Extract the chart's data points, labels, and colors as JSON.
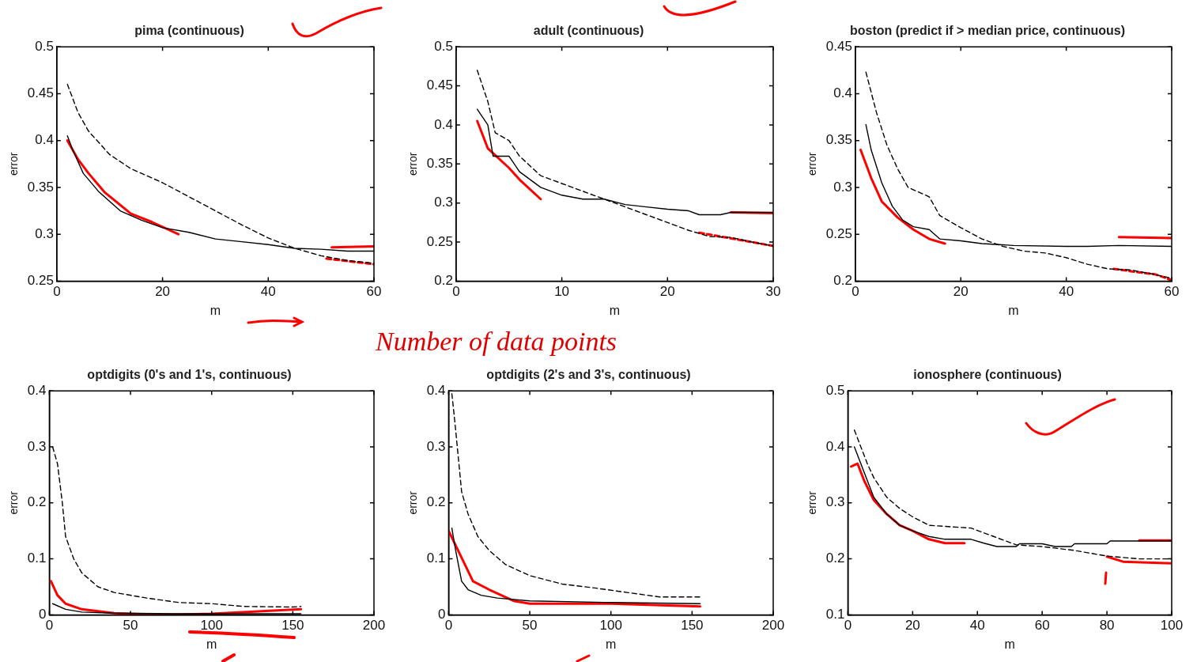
{
  "chart_data": [
    {
      "type": "line",
      "title": "pima (continuous)",
      "xlabel": "m",
      "ylabel": "error",
      "xlim": [
        0,
        60
      ],
      "xticks": [
        0,
        20,
        40,
        60
      ],
      "ylim": [
        0.25,
        0.5
      ],
      "yticks": [
        0.25,
        0.3,
        0.35,
        0.4,
        0.45,
        0.5
      ],
      "grid": false,
      "legend": false,
      "series": [
        {
          "color": "#000000",
          "line_style": "solid",
          "x": [
            2,
            3,
            5,
            8,
            12,
            16,
            20,
            25,
            30,
            35,
            40,
            45,
            50,
            55,
            60
          ],
          "values": [
            0.405,
            0.39,
            0.365,
            0.345,
            0.325,
            0.315,
            0.307,
            0.302,
            0.295,
            0.292,
            0.289,
            0.285,
            0.284,
            0.282,
            0.282
          ]
        },
        {
          "color": "#000000",
          "line_style": "dashed",
          "x": [
            2,
            4,
            6,
            10,
            14,
            20,
            25,
            30,
            35,
            40,
            45,
            50,
            55,
            60
          ],
          "values": [
            0.46,
            0.43,
            0.41,
            0.385,
            0.37,
            0.355,
            0.34,
            0.325,
            0.31,
            0.296,
            0.285,
            0.277,
            0.272,
            0.269
          ]
        },
        {
          "color": "#ff0000",
          "line_style": "solid",
          "x": [
            2,
            4,
            6,
            9,
            14,
            18,
            23
          ],
          "values": [
            0.4,
            0.38,
            0.365,
            0.345,
            0.322,
            0.313,
            0.3
          ]
        },
        {
          "color": "#ff0000",
          "line_style": "solid",
          "x": [
            52,
            60
          ],
          "values": [
            0.286,
            0.287
          ]
        },
        {
          "color": "#ff0000",
          "line_style": "dashed",
          "x": [
            51,
            60
          ],
          "values": [
            0.274,
            0.268
          ]
        }
      ]
    },
    {
      "type": "line",
      "title": "adult (continuous)",
      "xlabel": "m",
      "ylabel": "error",
      "xlim": [
        0,
        30
      ],
      "xticks": [
        0,
        10,
        20,
        30
      ],
      "ylim": [
        0.2,
        0.5
      ],
      "yticks": [
        0.2,
        0.25,
        0.3,
        0.35,
        0.4,
        0.45,
        0.5
      ],
      "grid": false,
      "legend": false,
      "annotations": [
        "Number of data points"
      ],
      "series": [
        {
          "color": "#000000",
          "line_style": "solid",
          "x": [
            2,
            3,
            3.5,
            5,
            6,
            8,
            10,
            12,
            14,
            16,
            18,
            20,
            22,
            23,
            25,
            26,
            30
          ],
          "values": [
            0.42,
            0.4,
            0.36,
            0.36,
            0.34,
            0.32,
            0.31,
            0.305,
            0.305,
            0.298,
            0.295,
            0.292,
            0.29,
            0.285,
            0.285,
            0.288,
            0.288
          ]
        },
        {
          "color": "#000000",
          "line_style": "dashed",
          "x": [
            2,
            3,
            3.7,
            5,
            6,
            8,
            10,
            12,
            14,
            16,
            18,
            20,
            22,
            24,
            26,
            28,
            30
          ],
          "values": [
            0.47,
            0.43,
            0.39,
            0.38,
            0.36,
            0.335,
            0.325,
            0.315,
            0.305,
            0.295,
            0.285,
            0.275,
            0.265,
            0.257,
            0.256,
            0.25,
            0.245
          ]
        },
        {
          "color": "#ff0000",
          "line_style": "solid",
          "x": [
            2,
            3,
            5,
            6,
            8
          ],
          "values": [
            0.405,
            0.37,
            0.345,
            0.33,
            0.305
          ]
        },
        {
          "color": "#ff0000",
          "line_style": "solid",
          "x": [
            26,
            30
          ],
          "values": [
            0.288,
            0.287
          ]
        },
        {
          "color": "#ff0000",
          "line_style": "dashed",
          "x": [
            23,
            30
          ],
          "values": [
            0.262,
            0.245
          ]
        }
      ]
    },
    {
      "type": "line",
      "title": "boston (predict if > median price, continuous)",
      "xlabel": "m",
      "ylabel": "error",
      "xlim": [
        0,
        60
      ],
      "xticks": [
        0,
        20,
        40,
        60
      ],
      "ylim": [
        0.2,
        0.45
      ],
      "yticks": [
        0.2,
        0.25,
        0.3,
        0.35,
        0.4,
        0.45
      ],
      "grid": false,
      "legend": false,
      "series": [
        {
          "color": "#000000",
          "line_style": "solid",
          "x": [
            2,
            3,
            5,
            7,
            9,
            11,
            14,
            16,
            20,
            24,
            30,
            40,
            44,
            50,
            60
          ],
          "values": [
            0.367,
            0.34,
            0.305,
            0.28,
            0.265,
            0.258,
            0.255,
            0.245,
            0.243,
            0.24,
            0.238,
            0.237,
            0.237,
            0.238,
            0.237
          ]
        },
        {
          "color": "#000000",
          "line_style": "dashed",
          "x": [
            2,
            4,
            6,
            8,
            10,
            14,
            16,
            20,
            24,
            28,
            32,
            36,
            40,
            44,
            48,
            52,
            56,
            60
          ],
          "values": [
            0.423,
            0.38,
            0.345,
            0.32,
            0.3,
            0.29,
            0.27,
            0.257,
            0.245,
            0.237,
            0.232,
            0.23,
            0.225,
            0.218,
            0.213,
            0.212,
            0.208,
            0.203
          ]
        },
        {
          "color": "#ff0000",
          "line_style": "solid",
          "x": [
            1,
            3,
            5,
            8,
            11,
            14,
            17
          ],
          "values": [
            0.34,
            0.31,
            0.285,
            0.268,
            0.255,
            0.245,
            0.24
          ]
        },
        {
          "color": "#ff0000",
          "line_style": "solid",
          "x": [
            50,
            60
          ],
          "values": [
            0.247,
            0.246
          ]
        },
        {
          "color": "#ff0000",
          "line_style": "dashed",
          "x": [
            49,
            57,
            60
          ],
          "values": [
            0.213,
            0.207,
            0.201
          ]
        }
      ]
    },
    {
      "type": "line",
      "title": "optdigits (0's and 1's, continuous)",
      "xlabel": "m",
      "ylabel": "error",
      "xlim": [
        0,
        200
      ],
      "xticks": [
        0,
        50,
        100,
        150,
        200
      ],
      "ylim": [
        0,
        0.4
      ],
      "yticks": [
        0,
        0.1,
        0.2,
        0.3,
        0.4
      ],
      "grid": false,
      "legend": false,
      "series": [
        {
          "color": "#000000",
          "line_style": "solid",
          "x": [
            2,
            10,
            20,
            40,
            80,
            155
          ],
          "values": [
            0.02,
            0.01,
            0.005,
            0.003,
            0.002,
            0.002
          ]
        },
        {
          "color": "#000000",
          "line_style": "dashed",
          "x": [
            2,
            5,
            8,
            10,
            15,
            20,
            30,
            40,
            60,
            80,
            100,
            120,
            150,
            155
          ],
          "values": [
            0.3,
            0.27,
            0.2,
            0.14,
            0.1,
            0.075,
            0.05,
            0.04,
            0.03,
            0.022,
            0.02,
            0.015,
            0.014,
            0.015
          ]
        },
        {
          "color": "#ff0000",
          "line_style": "solid",
          "x": [
            1,
            5,
            10,
            20,
            40,
            70,
            100,
            155
          ],
          "values": [
            0.06,
            0.035,
            0.02,
            0.01,
            0.003,
            0,
            0.002,
            0.01
          ]
        }
      ]
    },
    {
      "type": "line",
      "title": "optdigits (2's and 3's, continuous)",
      "xlabel": "m",
      "ylabel": "error",
      "xlim": [
        0,
        200
      ],
      "xticks": [
        0,
        50,
        100,
        150,
        200
      ],
      "ylim": [
        0,
        0.4
      ],
      "yticks": [
        0,
        0.1,
        0.2,
        0.3,
        0.4
      ],
      "grid": false,
      "legend": false,
      "series": [
        {
          "color": "#000000",
          "line_style": "solid",
          "x": [
            2,
            4,
            8,
            12,
            20,
            30,
            50,
            100,
            155
          ],
          "values": [
            0.155,
            0.12,
            0.06,
            0.045,
            0.035,
            0.03,
            0.025,
            0.022,
            0.02
          ]
        },
        {
          "color": "#000000",
          "line_style": "dashed",
          "x": [
            2,
            4,
            8,
            12,
            18,
            25,
            35,
            50,
            70,
            90,
            110,
            130,
            155
          ],
          "values": [
            0.395,
            0.34,
            0.22,
            0.18,
            0.14,
            0.115,
            0.09,
            0.07,
            0.055,
            0.048,
            0.04,
            0.032,
            0.032
          ]
        },
        {
          "color": "#ff0000",
          "line_style": "solid",
          "x": [
            0,
            5,
            10,
            15,
            25,
            40,
            50,
            100,
            155
          ],
          "values": [
            0.15,
            0.12,
            0.09,
            0.06,
            0.045,
            0.025,
            0.02,
            0.02,
            0.015
          ]
        }
      ]
    },
    {
      "type": "line",
      "title": "ionosphere (continuous)",
      "xlabel": "m",
      "ylabel": "error",
      "xlim": [
        0,
        100
      ],
      "xticks": [
        0,
        20,
        40,
        60,
        80,
        100
      ],
      "ylim": [
        0.1,
        0.5
      ],
      "yticks": [
        0.1,
        0.2,
        0.3,
        0.4,
        0.5
      ],
      "grid": false,
      "legend": false,
      "series": [
        {
          "color": "#000000",
          "line_style": "solid",
          "x": [
            2,
            4,
            6,
            8,
            12,
            16,
            20,
            25,
            30,
            38,
            42,
            46,
            52,
            53,
            60,
            64,
            69,
            70,
            80,
            81,
            100
          ],
          "values": [
            0.4,
            0.37,
            0.34,
            0.31,
            0.28,
            0.26,
            0.25,
            0.24,
            0.235,
            0.235,
            0.228,
            0.222,
            0.222,
            0.227,
            0.227,
            0.222,
            0.222,
            0.227,
            0.227,
            0.232,
            0.232
          ]
        },
        {
          "color": "#000000",
          "line_style": "dashed",
          "x": [
            2,
            4,
            6,
            8,
            12,
            16,
            20,
            25,
            30,
            38,
            45,
            52,
            60,
            70,
            80,
            90,
            100
          ],
          "values": [
            0.43,
            0.4,
            0.37,
            0.345,
            0.31,
            0.29,
            0.275,
            0.26,
            0.258,
            0.255,
            0.24,
            0.225,
            0.222,
            0.215,
            0.205,
            0.2,
            0.2
          ]
        },
        {
          "color": "#ff0000",
          "line_style": "solid",
          "x": [
            1,
            3,
            5,
            8,
            12,
            16,
            20,
            25,
            30,
            36
          ],
          "values": [
            0.365,
            0.37,
            0.34,
            0.305,
            0.28,
            0.26,
            0.25,
            0.235,
            0.228,
            0.228
          ]
        },
        {
          "color": "#ff0000",
          "line_style": "solid",
          "x": [
            90,
            100
          ],
          "values": [
            0.233,
            0.233
          ]
        },
        {
          "color": "#ff0000",
          "line_style": "solid",
          "x": [
            80,
            85,
            100
          ],
          "values": [
            0.204,
            0.195,
            0.192
          ]
        }
      ]
    }
  ]
}
